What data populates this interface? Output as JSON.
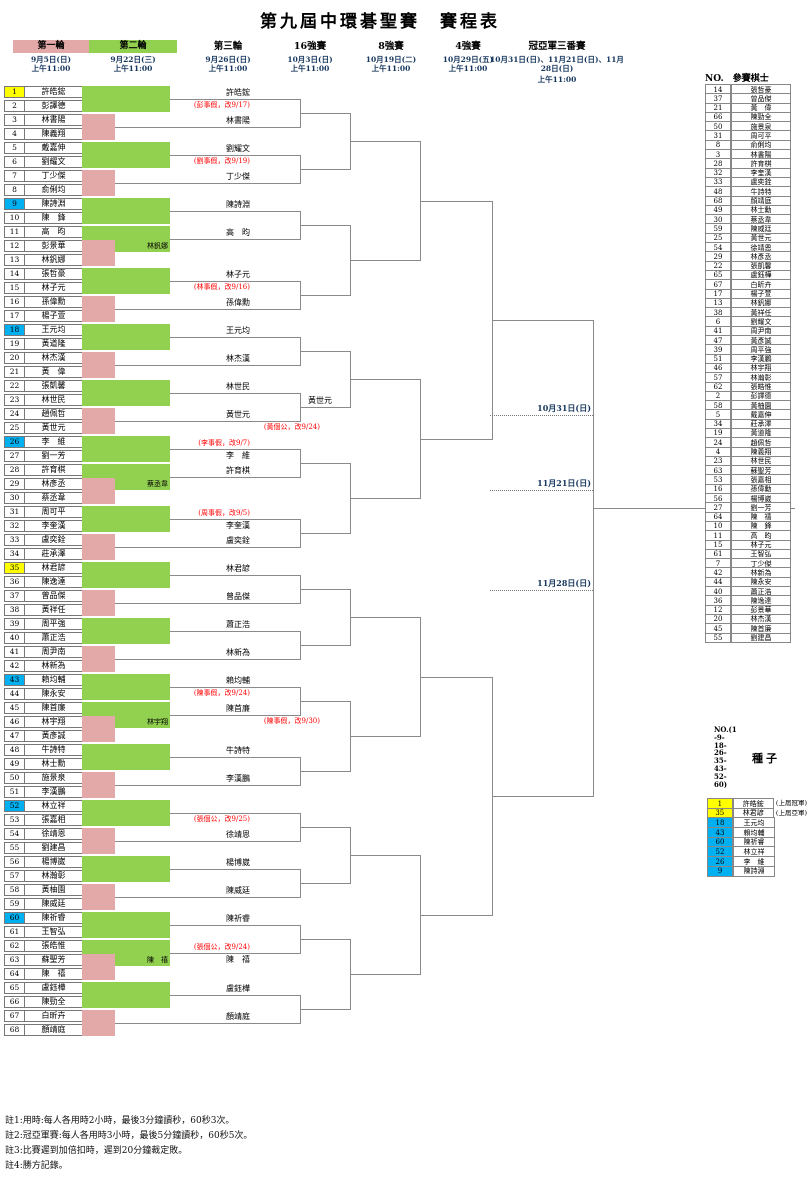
{
  "title": "第九屆中環碁聖賽　賽程表",
  "colors": {
    "green": "#92D050",
    "pink": "#E3A8A8",
    "yellow": "#FFFF00",
    "blue": "#00B0F0",
    "note_red": "#FF0000",
    "date_navy": "#17375E",
    "line_gray": "#8a8a8a"
  },
  "rounds": [
    {
      "label": "第一輪",
      "date": "9月5日(日)",
      "time": "上午11:00",
      "box": "pink"
    },
    {
      "label": "第二輪",
      "date": "9月22日(三)",
      "time": "上午11:00",
      "box": "green"
    },
    {
      "label": "第三輪",
      "date": "9月26日(日)",
      "time": "上午11:00"
    },
    {
      "label": "16強賽",
      "date": "10月3日(日)",
      "time": "上午11:00"
    },
    {
      "label": "8強賽",
      "date": "10月19日(二)",
      "time": "上午11:00"
    },
    {
      "label": "4強賽",
      "date": "10月29日(五)",
      "time": "上午11:00"
    },
    {
      "label": "冠亞軍三番賽",
      "date": "10月31日(日)、11月21日(日)、11月28日(日)",
      "time": "上午11:00"
    }
  ],
  "players": [
    {
      "no": 1,
      "name": "許皓鋐",
      "seed": "yellow"
    },
    {
      "no": 2,
      "name": "彭譯德"
    },
    {
      "no": 3,
      "name": "林書陽"
    },
    {
      "no": 4,
      "name": "陳義翔"
    },
    {
      "no": 5,
      "name": "戴嘉伸"
    },
    {
      "no": 6,
      "name": "劉耀文"
    },
    {
      "no": 7,
      "name": "丁少傑"
    },
    {
      "no": 8,
      "name": "俞俐均"
    },
    {
      "no": 9,
      "name": "陳詩淵",
      "seed": "blue"
    },
    {
      "no": 10,
      "name": "陳　鋒"
    },
    {
      "no": 11,
      "name": "高　昀"
    },
    {
      "no": 12,
      "name": "彭景華"
    },
    {
      "no": 13,
      "name": "林釩娜"
    },
    {
      "no": 14,
      "name": "張哲豪"
    },
    {
      "no": 15,
      "name": "林子元"
    },
    {
      "no": 16,
      "name": "孫偉勳"
    },
    {
      "no": 17,
      "name": "楊子萱"
    },
    {
      "no": 18,
      "name": "王元均",
      "seed": "blue"
    },
    {
      "no": 19,
      "name": "黃道隆"
    },
    {
      "no": 20,
      "name": "林杰漢"
    },
    {
      "no": 21,
      "name": "黃　偉"
    },
    {
      "no": 22,
      "name": "張凱馨"
    },
    {
      "no": 23,
      "name": "林世民"
    },
    {
      "no": 24,
      "name": "趙佩哲"
    },
    {
      "no": 25,
      "name": "黃世元"
    },
    {
      "no": 26,
      "name": "李　維",
      "seed": "blue"
    },
    {
      "no": 27,
      "name": "劉一芳"
    },
    {
      "no": 28,
      "name": "許育棋"
    },
    {
      "no": 29,
      "name": "林彥丞"
    },
    {
      "no": 30,
      "name": "蔡丞韋"
    },
    {
      "no": 31,
      "name": "周可平"
    },
    {
      "no": 32,
      "name": "李奎漢"
    },
    {
      "no": 33,
      "name": "盧奕銓"
    },
    {
      "no": 34,
      "name": "莊承澤"
    },
    {
      "no": 35,
      "name": "林君諺",
      "seed": "yellow"
    },
    {
      "no": 36,
      "name": "陳逸達"
    },
    {
      "no": 37,
      "name": "曾品傑"
    },
    {
      "no": 38,
      "name": "黃祥任"
    },
    {
      "no": 39,
      "name": "周平強"
    },
    {
      "no": 40,
      "name": "蕭正浩"
    },
    {
      "no": 41,
      "name": "周尹南"
    },
    {
      "no": 42,
      "name": "林新為"
    },
    {
      "no": 43,
      "name": "賴均輔",
      "seed": "blue"
    },
    {
      "no": 44,
      "name": "陳永安"
    },
    {
      "no": 45,
      "name": "陳首廉"
    },
    {
      "no": 46,
      "name": "林宇翔"
    },
    {
      "no": 47,
      "name": "黃彥誠"
    },
    {
      "no": 48,
      "name": "牛詩特"
    },
    {
      "no": 49,
      "name": "林士勳"
    },
    {
      "no": 50,
      "name": "施景泉"
    },
    {
      "no": 51,
      "name": "李漢鵬"
    },
    {
      "no": 52,
      "name": "林立祥",
      "seed": "blue"
    },
    {
      "no": 53,
      "name": "張嘉相"
    },
    {
      "no": 54,
      "name": "徐靖恩"
    },
    {
      "no": 55,
      "name": "劉建昌"
    },
    {
      "no": 56,
      "name": "楊博崴"
    },
    {
      "no": 57,
      "name": "林瀚彰"
    },
    {
      "no": 58,
      "name": "黃柚園"
    },
    {
      "no": 59,
      "name": "陳威廷"
    },
    {
      "no": 60,
      "name": "陳祈睿",
      "seed": "blue"
    },
    {
      "no": 61,
      "name": "王智弘"
    },
    {
      "no": 62,
      "name": "張皓惟"
    },
    {
      "no": 63,
      "name": "蘇聖芳"
    },
    {
      "no": 64,
      "name": "陳　禧"
    },
    {
      "no": 65,
      "name": "盧鈺樺"
    },
    {
      "no": 66,
      "name": "陳勁全"
    },
    {
      "no": 67,
      "name": "白昕卉"
    },
    {
      "no": 68,
      "name": "顏靖庭"
    }
  ],
  "second_round": [
    {
      "rows": [
        1,
        2
      ],
      "type": "green",
      "winner": "許皓鋐",
      "note": "(彭事假，改9/17)"
    },
    {
      "rows": [
        3,
        4
      ],
      "type": "pink",
      "winner": "林書陽"
    },
    {
      "rows": [
        5,
        6
      ],
      "type": "green",
      "winner": "劉耀文",
      "note": "(劉事假，改9/19)"
    },
    {
      "rows": [
        7,
        8
      ],
      "type": "pink",
      "winner": "丁少傑"
    },
    {
      "rows": [
        9,
        10
      ],
      "type": "green",
      "winner": "陳詩淵"
    },
    {
      "rows": [
        11,
        12
      ],
      "type": "green",
      "winner": "高　昀",
      "inner": "林釩娜",
      "pink_rows": [
        12,
        13
      ]
    },
    {
      "rows": [
        14,
        15
      ],
      "type": "green",
      "winner": "林子元",
      "note": "(林事假，改9/16)"
    },
    {
      "rows": [
        16,
        17
      ],
      "type": "pink",
      "winner": "孫偉勳"
    },
    {
      "rows": [
        18,
        19
      ],
      "type": "green",
      "winner": "王元均"
    },
    {
      "rows": [
        20,
        21
      ],
      "type": "pink",
      "winner": "林杰漢"
    },
    {
      "rows": [
        22,
        23
      ],
      "type": "green",
      "winner": "林世民"
    },
    {
      "rows": [
        24,
        25
      ],
      "type": "pink",
      "winner": "黃世元"
    },
    {
      "rows": [
        26,
        27
      ],
      "type": "green",
      "winner": "李　維",
      "note": "(李事假，改9/7)",
      "swap": true
    },
    {
      "rows": [
        28,
        29
      ],
      "type": "green",
      "winner": "許育棋",
      "inner": "蔡丞韋",
      "pink_rows": [
        29,
        30
      ]
    },
    {
      "rows": [
        31,
        32
      ],
      "type": "green",
      "winner": "李奎漢",
      "note": "(周事假，改9/5)",
      "swap": true
    },
    {
      "rows": [
        33,
        34
      ],
      "type": "pink",
      "winner": "盧奕銓"
    },
    {
      "rows": [
        35,
        36
      ],
      "type": "green",
      "winner": "林君諺"
    },
    {
      "rows": [
        37,
        38
      ],
      "type": "pink",
      "winner": "曾品傑"
    },
    {
      "rows": [
        39,
        40
      ],
      "type": "green",
      "winner": "蕭正浩"
    },
    {
      "rows": [
        41,
        42
      ],
      "type": "pink",
      "winner": "林新為"
    },
    {
      "rows": [
        43,
        44
      ],
      "type": "green",
      "winner": "賴均輔",
      "note": "(陳事假，改9/24)"
    },
    {
      "rows": [
        45,
        46
      ],
      "type": "green",
      "winner": "陳首廉",
      "inner": "林宇翔",
      "pink_rows": [
        46,
        47
      ]
    },
    {
      "rows": [
        48,
        49
      ],
      "type": "green",
      "winner": "牛詩特"
    },
    {
      "rows": [
        50,
        51
      ],
      "type": "pink",
      "winner": "李漢鵬"
    },
    {
      "rows": [
        52,
        53
      ],
      "type": "green",
      "winner": "",
      "note": "(張個公，改9/25)"
    },
    {
      "rows": [
        54,
        55
      ],
      "type": "pink",
      "winner": "徐靖恩"
    },
    {
      "rows": [
        56,
        57
      ],
      "type": "green",
      "winner": "楊博崴"
    },
    {
      "rows": [
        58,
        59
      ],
      "type": "pink",
      "winner": "陳威廷"
    },
    {
      "rows": [
        60,
        61
      ],
      "type": "green",
      "winner": "陳祈睿"
    },
    {
      "rows": [
        62,
        63
      ],
      "type": "green",
      "winner": "陳　禧",
      "note": "(張個公，改9/24)",
      "swap": true,
      "inner": "陳　禧",
      "pink_rows": [
        63,
        64
      ]
    },
    {
      "rows": [
        65,
        66
      ],
      "type": "green",
      "winner": "盧鈺樺"
    },
    {
      "rows": [
        67,
        68
      ],
      "type": "pink",
      "winner": "顏靖庭"
    }
  ],
  "third_round": [
    {},
    {},
    {},
    {},
    {},
    {
      "winner": "黃世元",
      "note": "(黃個公，改9/24)"
    },
    {},
    {},
    {},
    {},
    {
      "winner": "",
      "note": "(陳事假，改9/30)"
    },
    {},
    {},
    {},
    {},
    {}
  ],
  "final": {
    "games": [
      "10月31日(日)",
      "11月21日(日)",
      "11月28日(日)"
    ]
  },
  "participants": {
    "no_header": "NO.",
    "name_header": "參賽棋士",
    "rows": [
      [
        14,
        "張哲豪"
      ],
      [
        37,
        "曾品傑"
      ],
      [
        21,
        "黃　偉"
      ],
      [
        66,
        "陳勁全"
      ],
      [
        50,
        "施景泉"
      ],
      [
        31,
        "周可平"
      ],
      [
        8,
        "俞俐均"
      ],
      [
        3,
        "林書陽"
      ],
      [
        28,
        "許育棋"
      ],
      [
        32,
        "李奎漢"
      ],
      [
        33,
        "盧奕銓"
      ],
      [
        48,
        "牛詩特"
      ],
      [
        68,
        "顏靖庭"
      ],
      [
        49,
        "林士勳"
      ],
      [
        30,
        "蔡丞韋"
      ],
      [
        59,
        "陳威廷"
      ],
      [
        25,
        "黃世元"
      ],
      [
        54,
        "徐靖恩"
      ],
      [
        29,
        "林彥丞"
      ],
      [
        22,
        "張凱馨"
      ],
      [
        65,
        "盧鈺樺"
      ],
      [
        67,
        "白昕卉"
      ],
      [
        17,
        "楊子萱"
      ],
      [
        13,
        "林釩娜"
      ],
      [
        38,
        "黃祥任"
      ],
      [
        6,
        "劉耀文"
      ],
      [
        41,
        "周尹南"
      ],
      [
        47,
        "黃彥誠"
      ],
      [
        39,
        "周平強"
      ],
      [
        51,
        "李漢鵬"
      ],
      [
        46,
        "林宇翔"
      ],
      [
        57,
        "林瀚彰"
      ],
      [
        62,
        "張皓惟"
      ],
      [
        2,
        "彭譯德"
      ],
      [
        58,
        "黃柚園"
      ],
      [
        5,
        "戴嘉伸"
      ],
      [
        34,
        "莊承澤"
      ],
      [
        19,
        "黃道隆"
      ],
      [
        24,
        "趙佩哲"
      ],
      [
        4,
        "陳義翔"
      ],
      [
        23,
        "林世民"
      ],
      [
        63,
        "蘇聖芳"
      ],
      [
        53,
        "張嘉相"
      ],
      [
        16,
        "孫偉勳"
      ],
      [
        56,
        "楊博崴"
      ],
      [
        27,
        "劉一芳"
      ],
      [
        64,
        "陳　禧"
      ],
      [
        10,
        "陳　鋒"
      ],
      [
        11,
        "高　昀"
      ],
      [
        15,
        "林子元"
      ],
      [
        61,
        "王智弘"
      ],
      [
        7,
        "丁少傑"
      ],
      [
        42,
        "林新為"
      ],
      [
        44,
        "陳永安"
      ],
      [
        40,
        "蕭正浩"
      ],
      [
        36,
        "陳逸達"
      ],
      [
        12,
        "彭景華"
      ],
      [
        20,
        "林杰漢"
      ],
      [
        45,
        "陳首廉"
      ],
      [
        55,
        "劉建昌"
      ]
    ]
  },
  "seeds": {
    "numbers_label": "NO.(1\n-9-\n18-\n26-\n35-\n43-\n52-\n60)",
    "title": "種子",
    "rows": [
      {
        "no": 1,
        "name": "許皓鋐",
        "color": "yellow",
        "tag": "(上屆冠軍)"
      },
      {
        "no": 35,
        "name": "林君諺",
        "color": "yellow",
        "tag": "(上屆亞軍)"
      },
      {
        "no": 18,
        "name": "王元均",
        "color": "blue"
      },
      {
        "no": 43,
        "name": "賴均輔",
        "color": "blue"
      },
      {
        "no": 60,
        "name": "陳祈睿",
        "color": "blue"
      },
      {
        "no": 52,
        "name": "林立祥",
        "color": "blue"
      },
      {
        "no": 26,
        "name": "李　維",
        "color": "blue"
      },
      {
        "no": 9,
        "name": "陳詩淵",
        "color": "blue"
      }
    ]
  },
  "notes_list": [
    "註1:用時:每人各用時2小時，最後3分鐘讀秒，60秒3次。",
    "註2:冠亞軍賽:每人各用時3小時，最後5分鐘讀秒，60秒5次。",
    "註3:比賽遲到加倍扣時，遲到20分鐘裁定敗。",
    "註4:勝方記錄。"
  ]
}
